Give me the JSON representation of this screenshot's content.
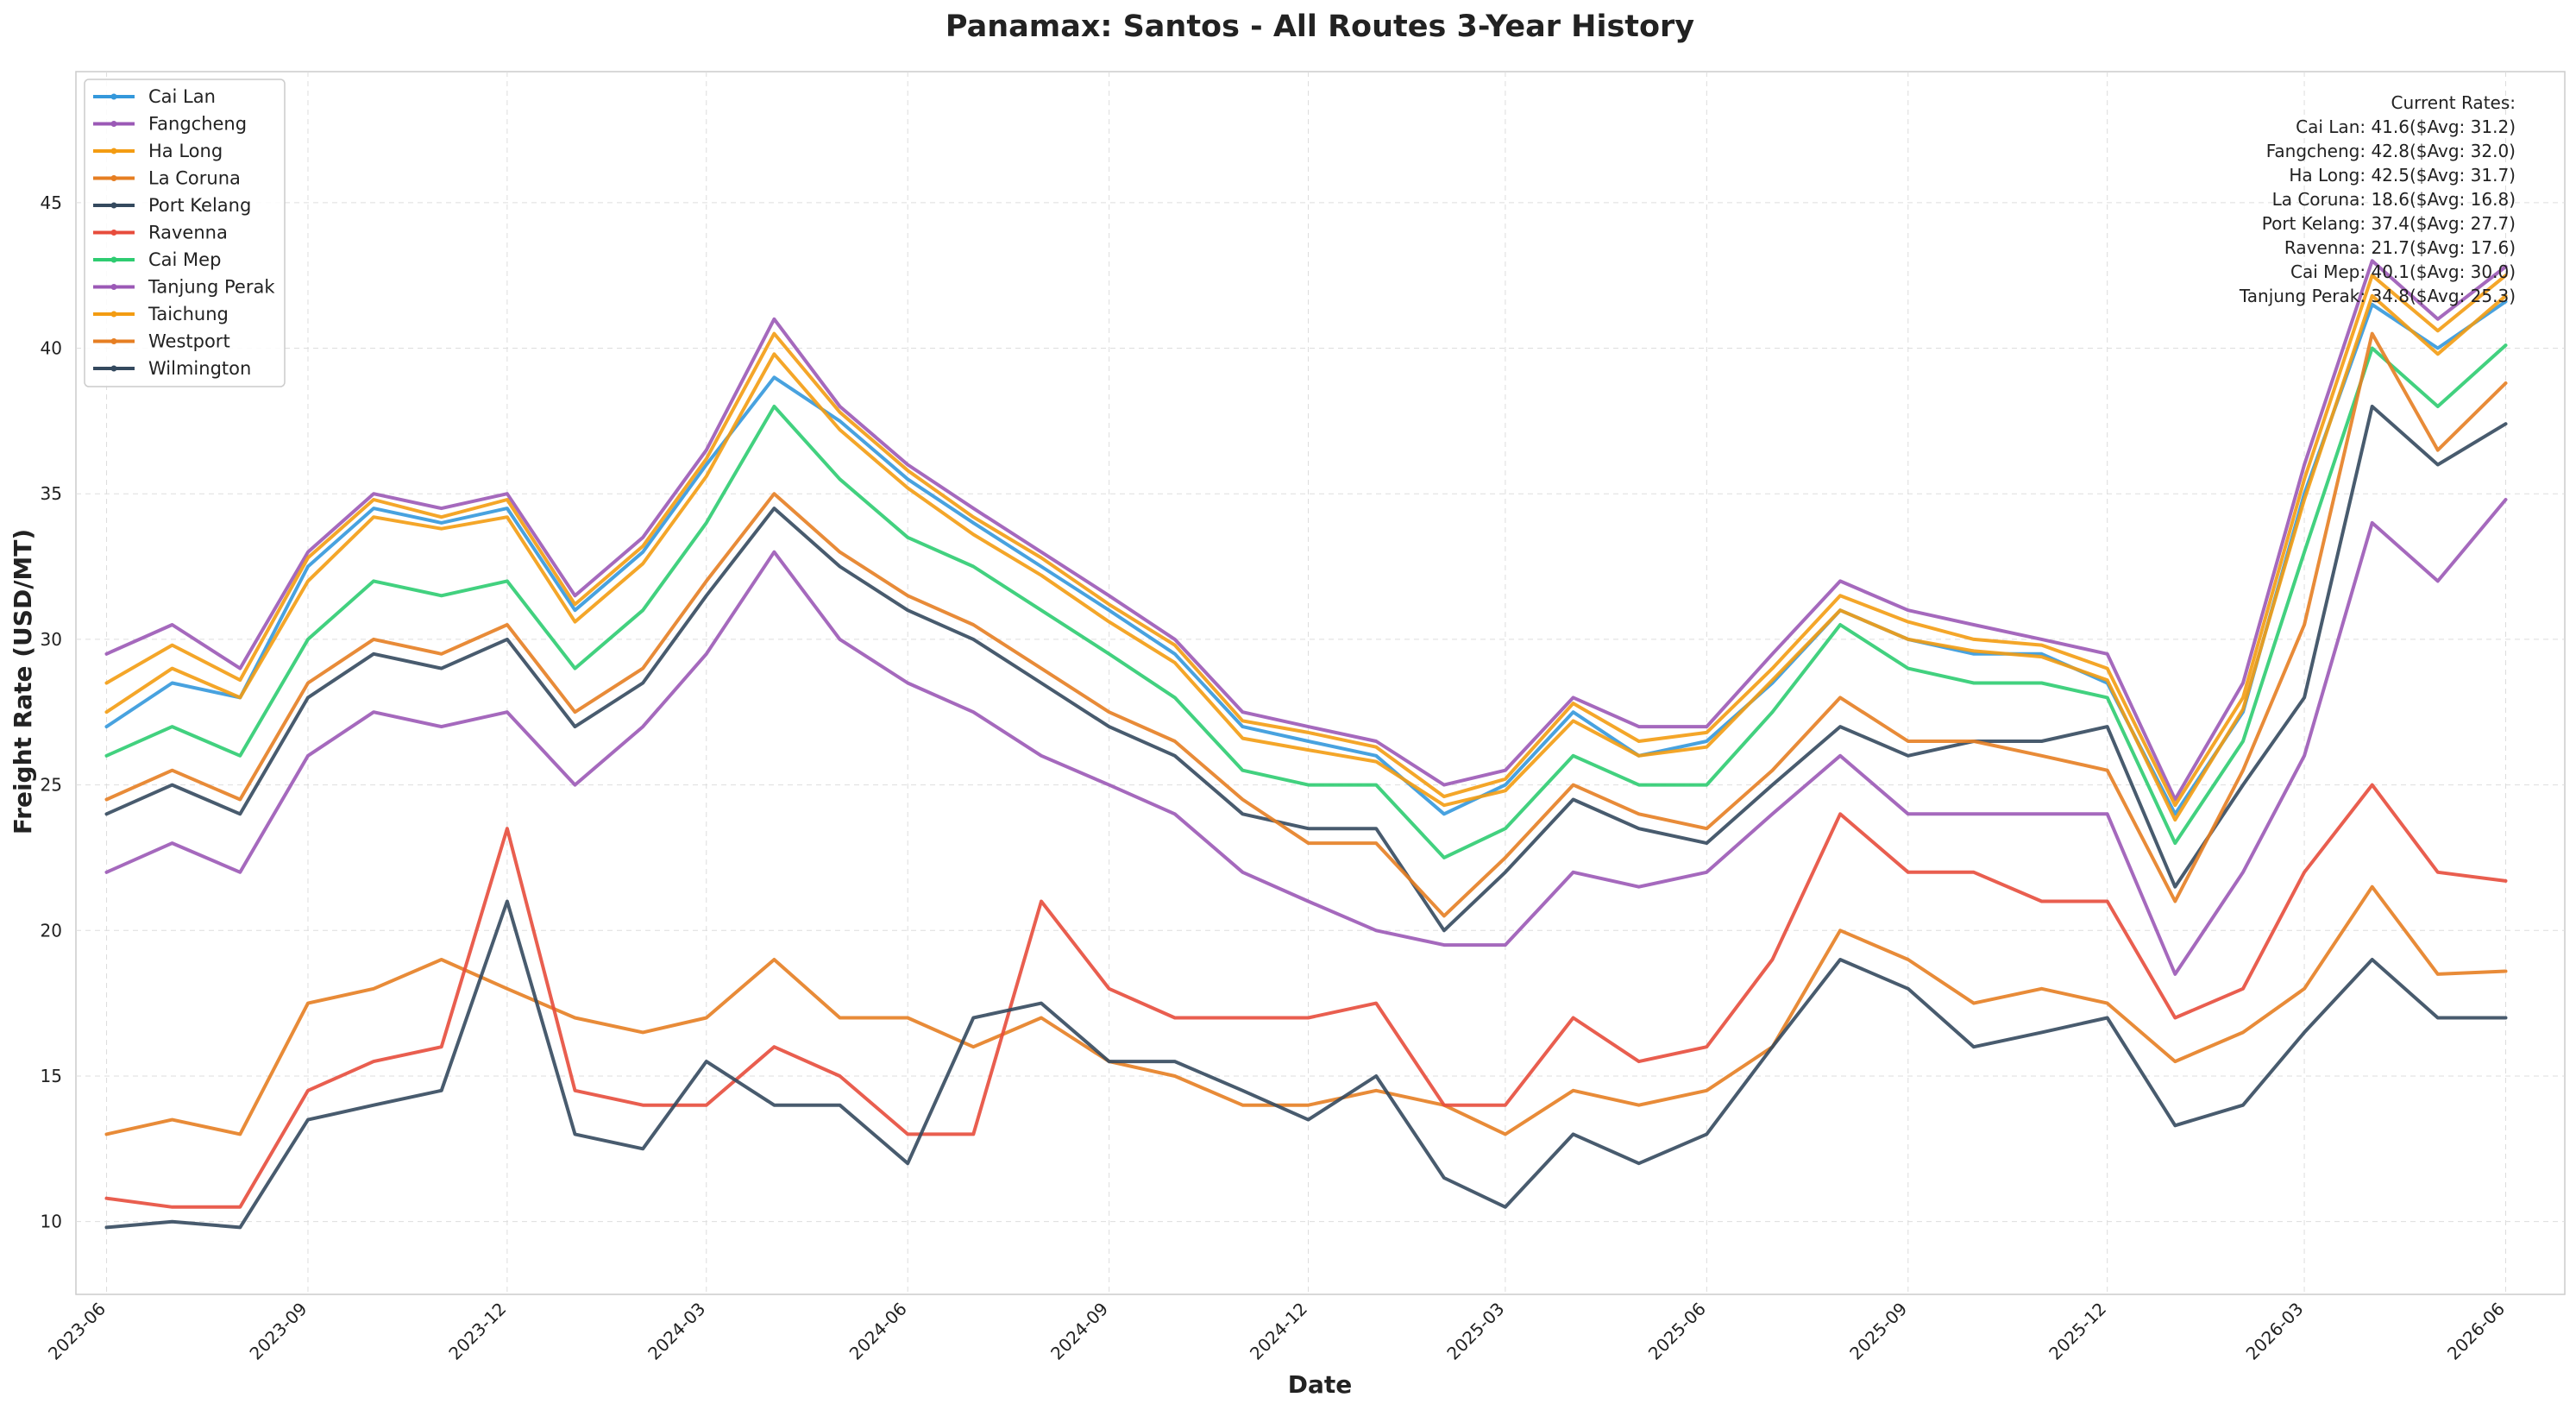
{
  "chart_data": {
    "type": "line",
    "title": "Panamax: Santos - All Routes 3-Year History",
    "xlabel": "Date",
    "ylabel": "Freight Rate (USD/MT)",
    "xlim": [
      "2023-05-18",
      "2026-06-28"
    ],
    "ylim": [
      7.5,
      49.5
    ],
    "x_ticks": [
      "2023-06",
      "2023-09",
      "2023-12",
      "2024-03",
      "2024-06",
      "2024-09",
      "2024-12",
      "2025-03",
      "2025-06",
      "2025-09",
      "2025-12",
      "2026-03",
      "2026-06"
    ],
    "y_ticks": [
      10,
      15,
      20,
      25,
      30,
      35,
      40,
      45
    ],
    "grid": true,
    "legend_position": "upper left",
    "x": [
      "2023-06-01",
      "2023-07-01",
      "2023-08-01",
      "2023-09-01",
      "2023-10-01",
      "2023-11-01",
      "2023-12-01",
      "2024-01-01",
      "2024-02-01",
      "2024-03-01",
      "2024-04-01",
      "2024-05-01",
      "2024-06-01",
      "2024-07-01",
      "2024-08-01",
      "2024-09-01",
      "2024-10-01",
      "2024-11-01",
      "2024-12-01",
      "2025-01-01",
      "2025-02-01",
      "2025-03-01",
      "2025-04-01",
      "2025-05-01",
      "2025-06-01",
      "2025-07-01",
      "2025-08-01",
      "2025-09-01",
      "2025-10-01",
      "2025-11-01",
      "2025-12-01",
      "2026-01-01",
      "2026-02-01",
      "2026-03-01",
      "2026-04-01",
      "2026-05-01",
      "2026-06-01"
    ],
    "series": [
      {
        "name": "Cai Lan",
        "color": "#3498db",
        "values": [
          27.0,
          28.5,
          28.0,
          32.5,
          34.5,
          34.0,
          34.5,
          31.0,
          33.0,
          36.0,
          39.0,
          37.5,
          35.5,
          34.0,
          32.5,
          31.0,
          29.5,
          27.0,
          26.5,
          26.0,
          24.0,
          25.0,
          27.5,
          26.0,
          26.5,
          28.5,
          31.0,
          30.0,
          29.5,
          29.5,
          28.5,
          24.0,
          27.5,
          35.0,
          41.5,
          40.0,
          41.6
        ]
      },
      {
        "name": "Fangcheng",
        "color": "#9b59b6",
        "values": [
          29.5,
          30.5,
          29.0,
          33.0,
          35.0,
          34.5,
          35.0,
          31.5,
          33.5,
          36.5,
          41.0,
          38.0,
          36.0,
          34.5,
          33.0,
          31.5,
          30.0,
          27.5,
          27.0,
          26.5,
          25.0,
          25.5,
          28.0,
          27.0,
          27.0,
          29.5,
          32.0,
          31.0,
          30.5,
          30.0,
          29.5,
          24.5,
          28.5,
          36.0,
          43.0,
          41.0,
          42.8
        ]
      },
      {
        "name": "Ha Long",
        "color": "#f39c12",
        "values": [
          28.5,
          29.8,
          28.6,
          32.8,
          34.8,
          34.2,
          34.8,
          31.2,
          33.2,
          36.2,
          40.5,
          37.8,
          35.8,
          34.2,
          32.8,
          31.2,
          29.8,
          27.2,
          26.8,
          26.3,
          24.6,
          25.2,
          27.8,
          26.5,
          26.8,
          29.0,
          31.5,
          30.6,
          30.0,
          29.8,
          29.0,
          24.3,
          28.0,
          35.5,
          42.5,
          40.6,
          42.5
        ]
      },
      {
        "name": "La Coruna",
        "color": "#e67e22",
        "values": [
          13.0,
          13.5,
          13.0,
          17.5,
          18.0,
          19.0,
          18.0,
          17.0,
          16.5,
          17.0,
          19.0,
          17.0,
          17.0,
          16.0,
          17.0,
          15.5,
          15.0,
          14.0,
          14.0,
          14.5,
          14.0,
          13.0,
          14.5,
          14.0,
          14.5,
          16.0,
          20.0,
          19.0,
          17.5,
          18.0,
          17.5,
          15.5,
          16.5,
          18.0,
          21.5,
          18.5,
          18.6
        ]
      },
      {
        "name": "Port Kelang",
        "color": "#34495e",
        "values": [
          24.0,
          25.0,
          24.0,
          28.0,
          29.5,
          29.0,
          30.0,
          27.0,
          28.5,
          31.5,
          34.5,
          32.5,
          31.0,
          30.0,
          28.5,
          27.0,
          26.0,
          24.0,
          23.5,
          23.5,
          20.0,
          22.0,
          24.5,
          23.5,
          23.0,
          25.0,
          27.0,
          26.0,
          26.5,
          26.5,
          27.0,
          21.5,
          25.0,
          28.0,
          38.0,
          36.0,
          37.4
        ]
      },
      {
        "name": "Ravenna",
        "color": "#e74c3c",
        "values": [
          10.8,
          10.5,
          10.5,
          14.5,
          15.5,
          16.0,
          23.5,
          14.5,
          14.0,
          14.0,
          16.0,
          15.0,
          13.0,
          13.0,
          21.0,
          18.0,
          17.0,
          17.0,
          17.0,
          17.5,
          14.0,
          14.0,
          17.0,
          15.5,
          16.0,
          19.0,
          24.0,
          22.0,
          22.0,
          21.0,
          21.0,
          17.0,
          18.0,
          22.0,
          25.0,
          22.0,
          21.7
        ]
      },
      {
        "name": "Cai Mep",
        "color": "#2ecc71",
        "values": [
          26.0,
          27.0,
          26.0,
          30.0,
          32.0,
          31.5,
          32.0,
          29.0,
          31.0,
          34.0,
          38.0,
          35.5,
          33.5,
          32.5,
          31.0,
          29.5,
          28.0,
          25.5,
          25.0,
          25.0,
          22.5,
          23.5,
          26.0,
          25.0,
          25.0,
          27.5,
          30.5,
          29.0,
          28.5,
          28.5,
          28.0,
          23.0,
          26.5,
          33.0,
          40.0,
          38.0,
          40.1
        ]
      },
      {
        "name": "Tanjung Perak",
        "color": "#9b59b6",
        "values": [
          22.0,
          23.0,
          22.0,
          26.0,
          27.5,
          27.0,
          27.5,
          25.0,
          27.0,
          29.5,
          33.0,
          30.0,
          28.5,
          27.5,
          26.0,
          25.0,
          24.0,
          22.0,
          21.0,
          20.0,
          19.5,
          19.5,
          22.0,
          21.5,
          22.0,
          24.0,
          26.0,
          24.0,
          24.0,
          24.0,
          24.0,
          18.5,
          22.0,
          26.0,
          34.0,
          32.0,
          34.8
        ]
      },
      {
        "name": "Taichung",
        "color": "#f39c12",
        "values": [
          27.5,
          29.0,
          28.0,
          32.0,
          34.2,
          33.8,
          34.2,
          30.6,
          32.6,
          35.6,
          39.8,
          37.2,
          35.2,
          33.6,
          32.2,
          30.6,
          29.2,
          26.6,
          26.2,
          25.8,
          24.3,
          24.8,
          27.2,
          26.0,
          26.3,
          28.6,
          31.0,
          30.0,
          29.6,
          29.4,
          28.6,
          23.8,
          27.6,
          34.8,
          41.8,
          39.8,
          41.8
        ]
      },
      {
        "name": "Westport",
        "color": "#e67e22",
        "values": [
          24.5,
          25.5,
          24.5,
          28.5,
          30.0,
          29.5,
          30.5,
          27.5,
          29.0,
          32.0,
          35.0,
          33.0,
          31.5,
          30.5,
          29.0,
          27.5,
          26.5,
          24.5,
          23.0,
          23.0,
          20.5,
          22.5,
          25.0,
          24.0,
          23.5,
          25.5,
          28.0,
          26.5,
          26.5,
          26.0,
          25.5,
          21.0,
          25.5,
          30.5,
          40.5,
          36.5,
          38.8
        ]
      },
      {
        "name": "Wilmington",
        "color": "#34495e",
        "values": [
          9.8,
          10.0,
          9.8,
          13.5,
          14.0,
          14.5,
          21.0,
          13.0,
          12.5,
          15.5,
          14.0,
          14.0,
          12.0,
          17.0,
          17.5,
          15.5,
          15.5,
          14.5,
          13.5,
          15.0,
          11.5,
          10.5,
          13.0,
          12.0,
          13.0,
          16.0,
          19.0,
          18.0,
          16.0,
          16.5,
          17.0,
          13.3,
          14.0,
          16.5,
          19.0,
          17.0,
          17.0
        ]
      }
    ],
    "annotation": {
      "header": "Current Rates:",
      "lines": [
        "Cai Lan: 41.6($Avg: 31.2)",
        "Fangcheng: 42.8($Avg: 32.0)",
        "Ha Long: 42.5($Avg: 31.7)",
        "La Coruna: 18.6($Avg: 16.8)",
        "Port Kelang: 37.4($Avg: 27.7)",
        "Ravenna: 21.7($Avg: 17.6)",
        "Cai Mep: 40.1($Avg: 30.0)",
        "Tanjung Perak: 34.8($Avg: 25.3)"
      ]
    }
  }
}
